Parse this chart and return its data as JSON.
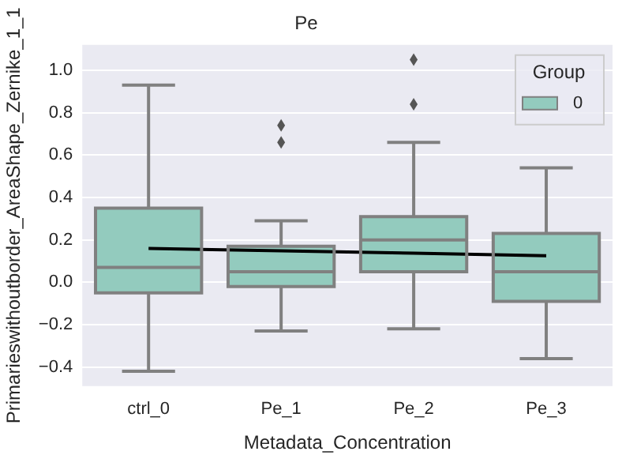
{
  "chart_data": {
    "type": "box",
    "title": "Pe",
    "xlabel": "Metadata_Concentration",
    "ylabel": "Primarieswithoutborder_AreaShape_Zernike_1_1",
    "legend_title": "Group",
    "legend": "top right",
    "grid": "y",
    "categories": [
      "ctrl_0",
      "Pe_1",
      "Pe_2",
      "Pe_3"
    ],
    "ylim": [
      -0.49,
      1.12
    ],
    "yticks": [
      -0.4,
      -0.2,
      {
        "value": 0,
        "label": "0.0"
      },
      0.2,
      0.4,
      0.6,
      0.8,
      {
        "value": 1,
        "label": "1.0"
      }
    ],
    "series": [
      {
        "name": "0",
        "color": "#93cbbe",
        "boxes": [
          {
            "low": -0.42,
            "q1": -0.05,
            "median": 0.07,
            "q3": 0.35,
            "high": 0.93
          },
          {
            "low": -0.23,
            "q1": -0.02,
            "median": 0.05,
            "q3": 0.17,
            "high": 0.29,
            "outliers": [
              0.66,
              0.74
            ]
          },
          {
            "low": -0.22,
            "q1": 0.05,
            "median": 0.2,
            "q3": 0.31,
            "high": 0.66,
            "outliers": [
              0.84,
              1.05
            ]
          },
          {
            "low": -0.36,
            "q1": -0.09,
            "median": 0.05,
            "q3": 0.23,
            "high": 0.54
          }
        ]
      },
      {
        "type": "line",
        "color": "#000000",
        "values": [
          0.16,
          0.148,
          0.137,
          0.125
        ]
      }
    ]
  }
}
